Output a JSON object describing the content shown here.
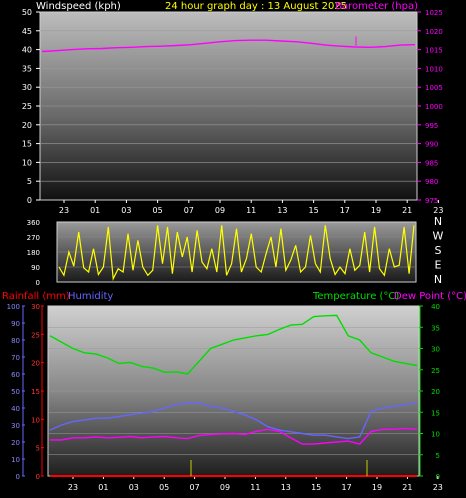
{
  "header": {
    "windspeed_label": "Windspeed (kph)",
    "title": "24 hour graph day : 13 August 2025",
    "barometer_label": "Barometer (hpa)"
  },
  "bottom_header": {
    "rainfall_label": "Rainfall (mm)",
    "humidity_label": "Humidity",
    "temperature_label": "Temperature (°C)",
    "dewpoint_label": "Dew Point (°C)"
  },
  "compass_labels": [
    "N",
    "W",
    "S",
    "E",
    "N"
  ],
  "colors": {
    "title": "#ffff00",
    "barometer": "#ff00ff",
    "winddir": "#ffff00",
    "rainfall": "#ff0000",
    "humidity": "#6666ff",
    "temperature": "#00dd00",
    "dewpoint": "#ff00ff",
    "axis_text": "#ffffff"
  },
  "chart_data": [
    {
      "type": "line",
      "name": "windspeed-barometer",
      "x_ticks": [
        "23",
        "01",
        "03",
        "05",
        "07",
        "09",
        "11",
        "13",
        "15",
        "17",
        "19",
        "21",
        "23"
      ],
      "y_left_ticks": [
        0,
        5,
        10,
        15,
        20,
        25,
        30,
        35,
        40,
        45,
        50
      ],
      "ylim_left": [
        0,
        50
      ],
      "y_right_ticks": [
        975,
        980,
        985,
        990,
        995,
        1000,
        1005,
        1010,
        1015,
        1020,
        1025
      ],
      "ylim_right": [
        975,
        1025
      ],
      "series": [
        {
          "axis": "right",
          "color": "#ff00ff",
          "values": [
            1014.5,
            1014.7,
            1015.0,
            1015.2,
            1015.3,
            1015.5,
            1015.6,
            1015.8,
            1015.9,
            1016.1,
            1016.3,
            1016.7,
            1017.1,
            1017.4,
            1017.5,
            1017.5,
            1017.3,
            1017.1,
            1016.7,
            1016.2,
            1015.9,
            1015.7,
            1015.6,
            1015.8,
            1016.2,
            1016.3
          ]
        }
      ]
    },
    {
      "type": "line",
      "name": "wind-direction",
      "y_ticks": [
        0,
        90,
        180,
        270,
        360
      ],
      "ylim": [
        0,
        360
      ],
      "series": [
        {
          "color": "#ffff00",
          "values": [
            90,
            40,
            180,
            95,
            300,
            85,
            60,
            200,
            45,
            90,
            330,
            20,
            80,
            60,
            290,
            70,
            250,
            90,
            40,
            70,
            340,
            110,
            330,
            50,
            300,
            150,
            270,
            60,
            310,
            120,
            80,
            200,
            60,
            340,
            40,
            110,
            320,
            60,
            140,
            290,
            90,
            60,
            170,
            270,
            90,
            320,
            70,
            130,
            220,
            60,
            90,
            280,
            110,
            60,
            340,
            140,
            45,
            90,
            50,
            200,
            70,
            100,
            300,
            60,
            330,
            80,
            40,
            200,
            90,
            100,
            330,
            50,
            340
          ]
        }
      ]
    },
    {
      "type": "line",
      "name": "rain-humidity-temperature-dewpoint",
      "x_ticks": [
        "23",
        "01",
        "03",
        "05",
        "07",
        "09",
        "11",
        "13",
        "15",
        "17",
        "19",
        "21",
        "23"
      ],
      "y_humidity_ticks": [
        0,
        10,
        20,
        30,
        40,
        50,
        60,
        70,
        80,
        90,
        100
      ],
      "ylim_humidity": [
        0,
        100
      ],
      "y_rain_ticks": [
        0,
        5,
        10,
        15,
        20,
        25,
        30
      ],
      "ylim_rain": [
        0,
        30
      ],
      "y_temp_ticks": [
        0,
        5,
        10,
        15,
        20,
        25,
        30,
        35,
        40
      ],
      "ylim_temp": [
        0,
        40
      ],
      "series": [
        {
          "axis": "temp",
          "color": "#00dd00",
          "values": [
            33,
            31.5,
            30,
            29,
            28.7,
            27.8,
            26.5,
            26.7,
            25.8,
            25.4,
            24.4,
            24.5,
            24.0,
            27.0,
            30.0,
            31.0,
            32.0,
            32.5,
            33.0,
            33.3,
            34.5,
            35.5,
            35.7,
            37.5,
            37.7,
            37.8,
            33.0,
            32.0,
            29.0,
            28.0,
            27.0,
            26.5,
            26.0
          ]
        },
        {
          "axis": "humidity",
          "color": "#6666ff",
          "values": [
            27,
            30,
            32,
            33,
            34,
            34,
            35,
            36,
            37,
            38,
            40,
            42,
            43,
            43,
            41,
            40,
            38,
            36,
            33,
            29,
            27,
            26,
            25,
            24,
            24,
            23,
            22,
            23,
            38,
            40,
            41,
            42,
            43
          ]
        },
        {
          "axis": "temp",
          "color": "#ff00ff",
          "values": [
            8.5,
            8.5,
            9.0,
            9.0,
            9.2,
            9.0,
            9.1,
            9.3,
            9.0,
            9.2,
            9.3,
            9.0,
            8.8,
            9.5,
            9.8,
            9.9,
            10.0,
            9.8,
            10.5,
            11.0,
            10.5,
            9.0,
            7.5,
            7.5,
            7.8,
            8.0,
            8.2,
            7.5,
            10.5,
            11.0,
            11.0,
            11.2,
            11.0
          ]
        },
        {
          "axis": "rain",
          "color": "#ff0000",
          "values": [
            0,
            0,
            0,
            0,
            0,
            0,
            0,
            0,
            0,
            0,
            0,
            0,
            0,
            0,
            0,
            0,
            0,
            0,
            0,
            0,
            0,
            0,
            0,
            0,
            0,
            0,
            0,
            0,
            0,
            0,
            0,
            0,
            0
          ]
        }
      ]
    }
  ]
}
